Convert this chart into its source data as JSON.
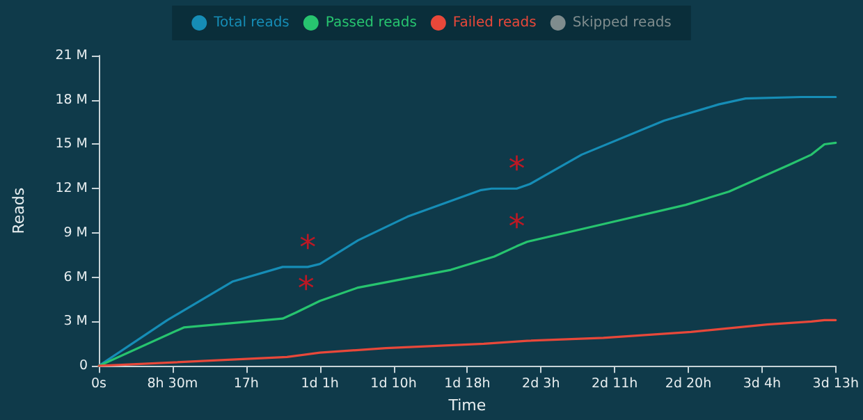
{
  "chart_data": {
    "type": "line",
    "xlabel": "Time",
    "ylabel": "Reads",
    "legend": "top",
    "grid": false,
    "marker": "none",
    "line_style": "solid",
    "xlim": [
      0,
      85
    ],
    "xticks": [
      {
        "value": 0,
        "label": "0s"
      },
      {
        "value": 8.5,
        "label": "8h 30m"
      },
      {
        "value": 17,
        "label": "17h"
      },
      {
        "value": 25.5,
        "label": "1d 1h"
      },
      {
        "value": 34,
        "label": "1d 10h"
      },
      {
        "value": 42.5,
        "label": "1d 18h"
      },
      {
        "value": 51,
        "label": "2d 3h"
      },
      {
        "value": 59.5,
        "label": "2d 11h"
      },
      {
        "value": 68,
        "label": "2d 20h"
      },
      {
        "value": 76.5,
        "label": "3d 4h"
      },
      {
        "value": 85,
        "label": "3d 13h"
      }
    ],
    "ylim": [
      0,
      21
    ],
    "yticks": [
      {
        "value": 0,
        "label": "0"
      },
      {
        "value": 3,
        "label": "3 M"
      },
      {
        "value": 6,
        "label": "6 M"
      },
      {
        "value": 9,
        "label": "9 M"
      },
      {
        "value": 12,
        "label": "12 M"
      },
      {
        "value": 15,
        "label": "15 M"
      },
      {
        "value": 18,
        "label": "18 M"
      },
      {
        "value": 21,
        "label": "21 M"
      }
    ],
    "series": [
      {
        "name": "Total reads",
        "color": "#168db6",
        "x": [
          0,
          7.9,
          15.4,
          21.2,
          24.1,
          25.5,
          29.9,
          35.6,
          44.1,
          45.3,
          48.2,
          49.7,
          55.7,
          65.2,
          71.5,
          74.6,
          81.0,
          85
        ],
        "values": [
          0,
          3.1,
          5.7,
          6.7,
          6.7,
          6.9,
          8.5,
          10.1,
          11.9,
          12.0,
          12.0,
          12.3,
          14.3,
          16.6,
          17.7,
          18.1,
          18.2,
          18.2
        ]
      },
      {
        "name": "Passed reads",
        "color": "#27c46f",
        "x": [
          0,
          9.8,
          21.2,
          22.7,
          25.5,
          29.9,
          40.6,
          45.6,
          48.2,
          49.4,
          58.2,
          67.7,
          72.7,
          79.6,
          82.2,
          83.7,
          85
        ],
        "values": [
          0,
          2.6,
          3.2,
          3.6,
          4.4,
          5.3,
          6.5,
          7.4,
          8.1,
          8.4,
          9.6,
          10.9,
          11.8,
          13.6,
          14.3,
          15.0,
          15.1
        ]
      },
      {
        "name": "Failed reads",
        "color": "#e8483a",
        "x": [
          0,
          21.7,
          25.5,
          33.1,
          44.4,
          49.4,
          58.2,
          68.3,
          77.1,
          82.2,
          83.7,
          85
        ],
        "values": [
          0,
          0.6,
          0.9,
          1.2,
          1.5,
          1.7,
          1.9,
          2.3,
          2.8,
          3.0,
          3.1,
          3.1
        ]
      },
      {
        "name": "Skipped reads",
        "color": "#7f8c8d"
      }
    ],
    "annotations": [
      {
        "text": "*",
        "x": 24.1,
        "y": 6.7
      },
      {
        "text": "*",
        "x": 23.9,
        "y": 3.9
      },
      {
        "text": "*",
        "x": 48.2,
        "y": 12.0
      },
      {
        "text": "*",
        "x": 48.2,
        "y": 8.1
      }
    ]
  }
}
